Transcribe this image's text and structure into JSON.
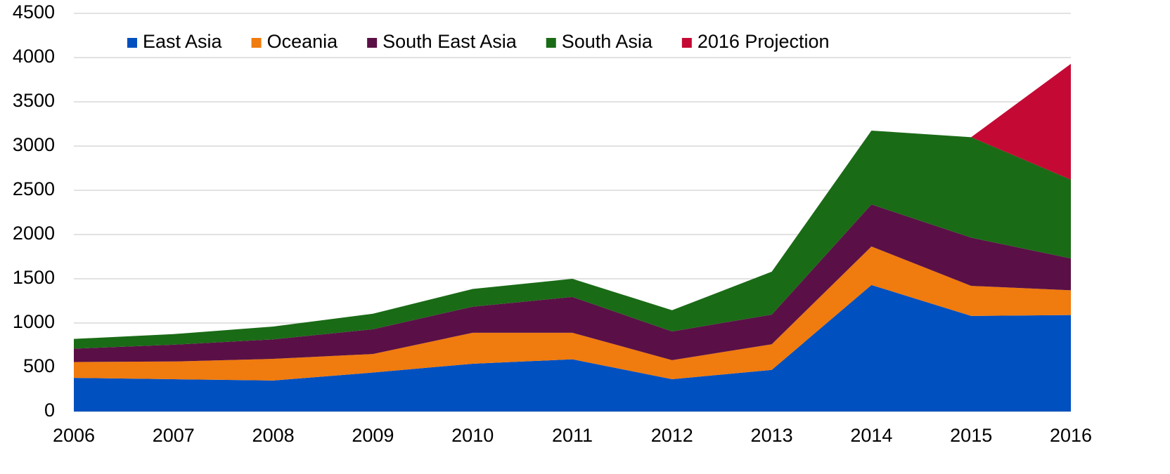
{
  "chart_data": {
    "type": "stacked_area",
    "x": [
      2006,
      2007,
      2008,
      2009,
      2010,
      2011,
      2012,
      2013,
      2014,
      2015,
      2016
    ],
    "xlim": [
      2006,
      2016
    ],
    "xticks": [
      2006,
      2007,
      2008,
      2009,
      2010,
      2011,
      2012,
      2013,
      2014,
      2015,
      2016
    ],
    "ylim": [
      0,
      4500
    ],
    "yticks": [
      0,
      500,
      1000,
      1500,
      2000,
      2500,
      3000,
      3500,
      4000,
      4500
    ],
    "grid": true,
    "legend": "top",
    "series": [
      {
        "name": "East Asia",
        "color": "#0050c0",
        "values": [
          380,
          365,
          350,
          440,
          540,
          590,
          365,
          470,
          1430,
          1080,
          1090
        ]
      },
      {
        "name": "Oceania",
        "color": "#f07b0e",
        "values": [
          180,
          200,
          245,
          210,
          350,
          300,
          215,
          290,
          435,
          340,
          280
        ]
      },
      {
        "name": "South East Asia",
        "color": "#5a1046",
        "values": [
          150,
          190,
          220,
          280,
          295,
          405,
          325,
          335,
          475,
          545,
          360
        ]
      },
      {
        "name": "South Asia",
        "color": "#1a6b16",
        "values": [
          110,
          120,
          145,
          175,
          200,
          205,
          240,
          485,
          835,
          1135,
          890
        ]
      },
      {
        "name": "2016 Projection",
        "color": "#c40a34",
        "values": [
          null,
          null,
          null,
          null,
          null,
          null,
          null,
          null,
          null,
          0,
          1310
        ]
      }
    ]
  }
}
